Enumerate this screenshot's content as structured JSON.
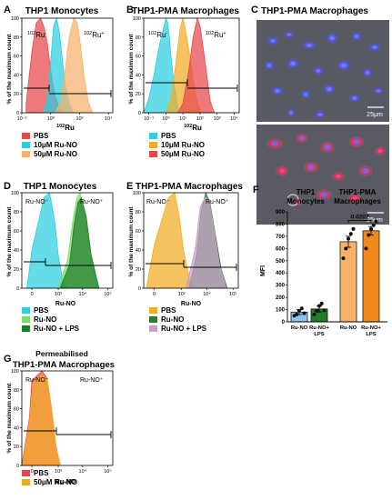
{
  "colors": {
    "red": "#e8474b",
    "cyan": "#2ccfe0",
    "light_orange": "#f7b26a",
    "orange": "#f08a1c",
    "light_blue": "#8ec4ee",
    "green": "#1f7d2a",
    "light_green": "#7ddb6a",
    "lavender": "#c79fc6",
    "gold": "#f1ad22",
    "brown": "#ac7d55"
  },
  "panels": {
    "A": {
      "letter": "A",
      "title": "THP1 Monocytes",
      "ylabel": "% of the maximum count",
      "xlabel": "102Ru",
      "xlabel_sup": "102",
      "xlabel_rest": "Ru",
      "gate_neg_sup": "102",
      "gate_neg_rest": "Ru",
      "gate_neg_sign": "-",
      "gate_pos_sup": "102",
      "gate_pos_rest": "Ru",
      "gate_pos_sign": "+",
      "yticks": [
        "100",
        "80",
        "60",
        "40",
        "20",
        "0"
      ],
      "xticks": [
        "10⁻²",
        "10⁰",
        "10²",
        "10⁴"
      ],
      "legend": [
        "PBS",
        "10μM Ru-NO",
        "50μM Ru-NO"
      ]
    },
    "B": {
      "letter": "B",
      "title": "THP1-PMA Macrophages",
      "ylabel": "% of the maximum count",
      "xlabel": "102Ru",
      "xlabel_sup": "102",
      "xlabel_rest": "Ru",
      "gate_neg_sup": "102",
      "gate_neg_rest": "Ru",
      "gate_neg_sign": "-",
      "gate_pos_sup": "102",
      "gate_pos_rest": "Ru",
      "gate_pos_sign": "+",
      "yticks": [
        "100",
        "80",
        "60",
        "40",
        "20",
        "0"
      ],
      "xticks": [
        "10⁻¹",
        "10⁰",
        "10¹",
        "10²",
        "10³",
        "10⁴"
      ],
      "legend": [
        "PBS",
        "10μM Ru-NO",
        "50μM Ru-NO"
      ]
    },
    "C": {
      "letter": "C",
      "title": "THP1-PMA Macrophages",
      "scale_top": "25μm",
      "scale_bottom": "25μm"
    },
    "D": {
      "letter": "D",
      "title": "THP1 Monocytes",
      "ylabel": "% of the maximum count",
      "xlabel": "Ru-NO",
      "gate_neg": "Ru-NO⁻",
      "gate_pos": "Ru-NO⁺",
      "yticks": [
        "100",
        "80",
        "60",
        "40",
        "20",
        "0"
      ],
      "xticks": [
        "0",
        "10³",
        "10⁴",
        "10⁵"
      ],
      "legend": [
        "PBS",
        "Ru-NO",
        "Ru-NO + LPS"
      ]
    },
    "E": {
      "letter": "E",
      "title": "THP1-PMA Macrophages",
      "ylabel": "% of the maximum count",
      "xlabel": "Ru-NO",
      "gate_neg": "Ru-NO⁻",
      "gate_pos": "Ru-NO⁺",
      "yticks": [
        "100",
        "80",
        "60",
        "40",
        "20",
        "0"
      ],
      "xticks": [
        "0",
        "10³",
        "10⁴",
        "10⁵"
      ],
      "legend": [
        "PBS",
        "Ru-NO",
        "Ru-NO + LPS"
      ]
    },
    "F": {
      "letter": "F",
      "group1_line1": "THP1",
      "group1_line2": "Monocytes",
      "group2_line1": "THP1-PMA",
      "group2_line2": "Macrophages",
      "ylabel": "MFI",
      "pvalue": "0.0207",
      "yticks": [
        "900",
        "800",
        "700",
        "600",
        "500",
        "400",
        "300",
        "200",
        "100",
        "0"
      ]
    },
    "G": {
      "letter": "G",
      "title_line1": "Permeabilised",
      "title_line2": "THP1-PMA Macrophages",
      "ylabel": "% of the maximum count",
      "xlabel": "Ru-NO",
      "gate_neg": "Ru-NO⁻",
      "gate_pos": "Ru-NO⁺",
      "yticks": [
        "100",
        "80",
        "60",
        "40",
        "20",
        "0"
      ],
      "xticks": [
        "0",
        "10³",
        "10⁴",
        "10⁵"
      ],
      "legend": [
        "PBS",
        "50μM Ru-NO"
      ]
    }
  },
  "chart_data": [
    {
      "panel": "A",
      "type": "area",
      "title": "THP1 Monocytes",
      "xlabel": "102Ru",
      "ylabel": "% of the maximum count",
      "ylim": [
        0,
        100
      ],
      "xscale": "log",
      "series": [
        {
          "name": "PBS",
          "color": "#e8474b",
          "x": [
            0.02,
            0.05,
            0.1,
            0.2,
            0.35,
            0.6,
            1,
            2,
            4,
            8
          ],
          "y": [
            10,
            65,
            95,
            100,
            90,
            72,
            45,
            18,
            5,
            0
          ]
        },
        {
          "name": "10μM Ru-NO",
          "color": "#2ccfe0",
          "x": [
            0.3,
            0.6,
            1,
            1.6,
            2.5,
            4,
            6,
            10,
            20,
            40
          ],
          "y": [
            0,
            15,
            55,
            92,
            100,
            85,
            60,
            30,
            8,
            0
          ]
        },
        {
          "name": "50μM Ru-NO",
          "color": "#f7b26a",
          "x": [
            2,
            5,
            10,
            20,
            40,
            70,
            120,
            200,
            400,
            800
          ],
          "y": [
            0,
            12,
            45,
            82,
            100,
            95,
            70,
            40,
            12,
            0
          ]
        }
      ]
    },
    {
      "panel": "B",
      "type": "area",
      "title": "THP1-PMA Macrophages",
      "xlabel": "102Ru",
      "ylabel": "% of the maximum count",
      "ylim": [
        0,
        100
      ],
      "xscale": "log",
      "series": [
        {
          "name": "PBS",
          "color": "#2ccfe0",
          "x": [
            0.05,
            0.1,
            0.2,
            0.4,
            0.7,
            1,
            1.3,
            1.6,
            2,
            3,
            5
          ],
          "y": [
            0,
            15,
            40,
            70,
            88,
            100,
            95,
            80,
            60,
            30,
            5
          ]
        },
        {
          "name": "10μM Ru-NO",
          "color": "#f1ad22",
          "x": [
            1,
            2,
            4,
            7,
            10,
            15,
            25,
            40,
            70,
            120
          ],
          "y": [
            0,
            15,
            55,
            90,
            100,
            85,
            60,
            35,
            10,
            0
          ]
        },
        {
          "name": "50μM Ru-NO",
          "color": "#e8474b",
          "x": [
            5,
            10,
            20,
            40,
            70,
            100,
            150,
            250,
            400,
            700
          ],
          "y": [
            0,
            10,
            40,
            80,
            100,
            92,
            70,
            40,
            12,
            0
          ]
        }
      ]
    },
    {
      "panel": "D",
      "type": "area",
      "title": "THP1 Monocytes",
      "xlabel": "Ru-NO",
      "ylabel": "% of the maximum count",
      "ylim": [
        0,
        100
      ],
      "series": [
        {
          "name": "PBS",
          "color": "#2ccfe0",
          "x": [
            -200,
            0,
            200,
            400,
            700,
            1000,
            1500,
            2500
          ],
          "y": [
            0,
            40,
            95,
            100,
            70,
            35,
            10,
            0
          ]
        },
        {
          "name": "Ru-NO",
          "color": "#7ddb6a",
          "x": [
            1000,
            2500,
            4000,
            6000,
            8000,
            12000,
            20000,
            40000
          ],
          "y": [
            0,
            30,
            70,
            95,
            100,
            80,
            40,
            0
          ]
        },
        {
          "name": "Ru-NO + LPS",
          "color": "#1f7d2a",
          "x": [
            1200,
            3000,
            4500,
            6500,
            9000,
            14000,
            22000,
            45000
          ],
          "y": [
            0,
            25,
            65,
            90,
            95,
            75,
            35,
            0
          ]
        }
      ]
    },
    {
      "panel": "E",
      "type": "area",
      "title": "THP1-PMA Macrophages",
      "xlabel": "Ru-NO",
      "ylabel": "% of the maximum count",
      "ylim": [
        0,
        100
      ],
      "series": [
        {
          "name": "PBS",
          "color": "#f1ad22",
          "x": [
            -300,
            0,
            250,
            500,
            800,
            1200,
            2000,
            3000
          ],
          "y": [
            0,
            45,
            95,
            100,
            75,
            40,
            12,
            0
          ]
        },
        {
          "name": "Ru-NO",
          "color": "#2f7d35",
          "x": [
            2000,
            4000,
            6000,
            9000,
            13000,
            20000,
            35000,
            60000
          ],
          "y": [
            0,
            35,
            80,
            100,
            90,
            60,
            20,
            0
          ]
        },
        {
          "name": "Ru-NO + LPS",
          "color": "#c79fc6",
          "x": [
            1500,
            3500,
            5500,
            8500,
            12000,
            18000,
            30000,
            55000
          ],
          "y": [
            0,
            40,
            85,
            95,
            92,
            65,
            25,
            0
          ]
        }
      ]
    },
    {
      "panel": "F",
      "type": "bar",
      "xlabel": "",
      "ylabel": "MFI",
      "ylim": [
        0,
        900
      ],
      "groups": [
        "THP1 Monocytes",
        "THP1-PMA Macrophages"
      ],
      "categories": [
        "Ru-NO",
        "Ru-NO+ LPS",
        "Ru-NO",
        "Ru-NO+ LPS"
      ],
      "values": [
        80,
        105,
        655,
        745
      ],
      "errors": [
        20,
        25,
        45,
        35
      ],
      "colors": [
        "#8ec4ee",
        "#1f7d2a",
        "#f7b26a",
        "#f08a1c"
      ],
      "points": [
        [
          50,
          60,
          90,
          110,
          70
        ],
        [
          60,
          90,
          130,
          150,
          95
        ],
        [
          520,
          600,
          680,
          720,
          760
        ],
        [
          600,
          710,
          760,
          790,
          820
        ]
      ],
      "annotation": {
        "between": [
          2,
          3
        ],
        "text": "0.0207"
      }
    },
    {
      "panel": "G",
      "type": "area",
      "title": "Permeabilised THP1-PMA Macrophages",
      "xlabel": "Ru-NO",
      "ylabel": "% of the maximum count",
      "ylim": [
        0,
        100
      ],
      "series": [
        {
          "name": "PBS",
          "color": "#e8474b",
          "x": [
            -400,
            -100,
            0,
            150,
            300,
            500,
            800,
            1200
          ],
          "y": [
            0,
            50,
            90,
            100,
            92,
            60,
            20,
            0
          ]
        },
        {
          "name": "50μM Ru-NO",
          "color": "#f1ad22",
          "x": [
            -380,
            -90,
            10,
            160,
            310,
            510,
            820,
            1250
          ],
          "y": [
            0,
            48,
            88,
            96,
            90,
            58,
            18,
            0
          ]
        }
      ]
    }
  ]
}
